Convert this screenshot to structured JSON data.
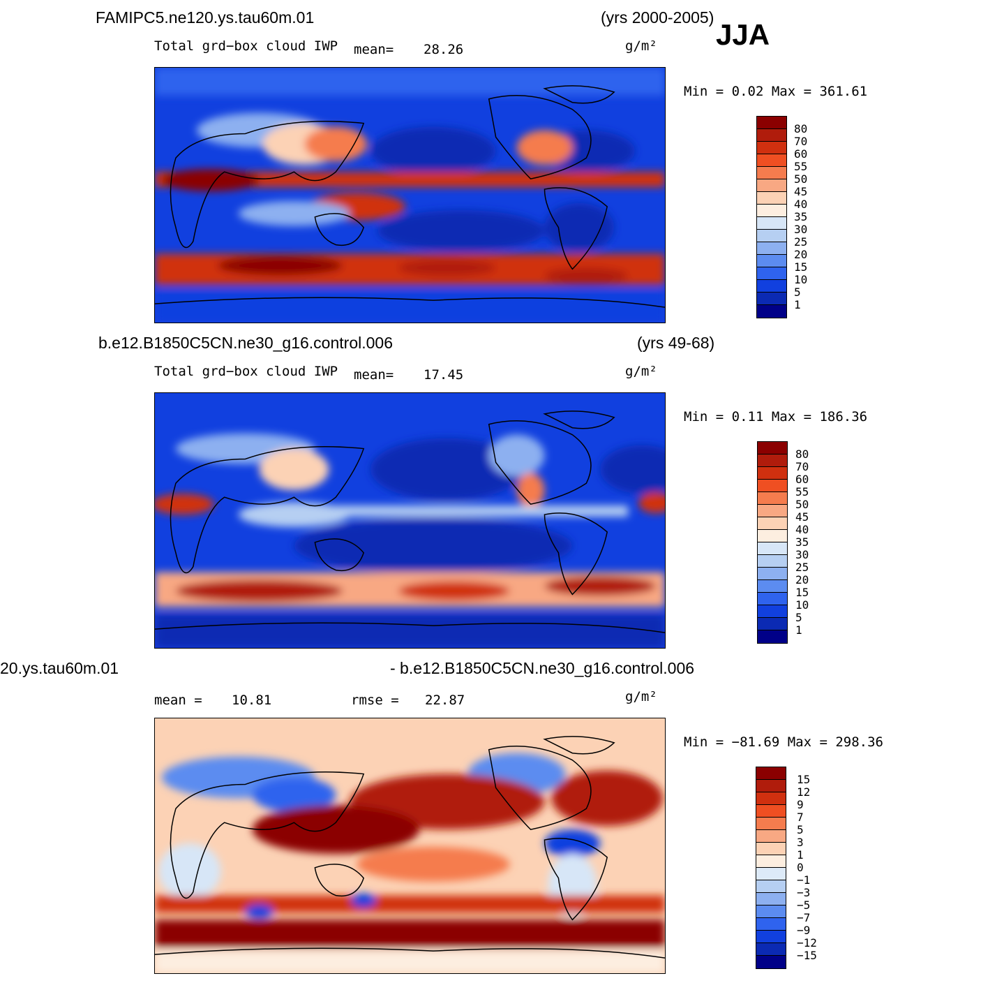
{
  "season": "JJA",
  "panels": [
    {
      "title_left": "FAMIPC5.ne120.ys.tau60m.01",
      "title_right": "(yrs 2000-2005)",
      "variable": "Total grd−box cloud IWP",
      "mean_label": "mean=",
      "mean_value": "28.26",
      "units": "g/m²",
      "minmax": "Min =    0.02 Max = 361.61",
      "colorbar_labels": [
        "80",
        "70",
        "60",
        "55",
        "50",
        "45",
        "40",
        "35",
        "30",
        "25",
        "20",
        "15",
        "10",
        "5",
        "1"
      ]
    },
    {
      "title_left": "b.e12.B1850C5CN.ne30_g16.control.006",
      "title_right": "(yrs 49-68)",
      "variable": "Total grd−box cloud IWP",
      "mean_label": "mean=",
      "mean_value": "17.45",
      "units": "g/m²",
      "minmax": "Min =    0.11 Max = 186.36",
      "colorbar_labels": [
        "80",
        "70",
        "60",
        "55",
        "50",
        "45",
        "40",
        "35",
        "30",
        "25",
        "20",
        "15",
        "10",
        "5",
        "1"
      ]
    },
    {
      "title_left": "20.ys.tau60m.01",
      "title_right": "- b.e12.B1850C5CN.ne30_g16.control.006",
      "mean_label": "mean =",
      "mean_value": "10.81",
      "rmse_label": "rmse =",
      "rmse_value": "22.87",
      "units": "g/m²",
      "minmax": "Min = −81.69 Max = 298.36",
      "colorbar_labels": [
        "15",
        "12",
        "9",
        "7",
        "5",
        "3",
        "1",
        "0",
        "−1",
        "−3",
        "−5",
        "−7",
        "−9",
        "−12",
        "−15"
      ]
    }
  ],
  "colors": {
    "seq": [
      "#8b0000",
      "#b01c0c",
      "#d0300f",
      "#ef4f22",
      "#f57c4e",
      "#f8a883",
      "#fcd2b5",
      "#fdeee0",
      "#d7e6f7",
      "#b6cff2",
      "#8db0f0",
      "#5c8cf0",
      "#2f63ee",
      "#1140df",
      "#0b2ab3",
      "#000088"
    ],
    "div": [
      "#8b0000",
      "#b01c0c",
      "#d0300f",
      "#ef4f22",
      "#f57c4e",
      "#f8a883",
      "#fcd2b5",
      "#fdeee0",
      "#ddeaf8",
      "#b6cff2",
      "#8db0f0",
      "#5c8cf0",
      "#2f63ee",
      "#1140df",
      "#0b2ab3",
      "#000088"
    ]
  }
}
